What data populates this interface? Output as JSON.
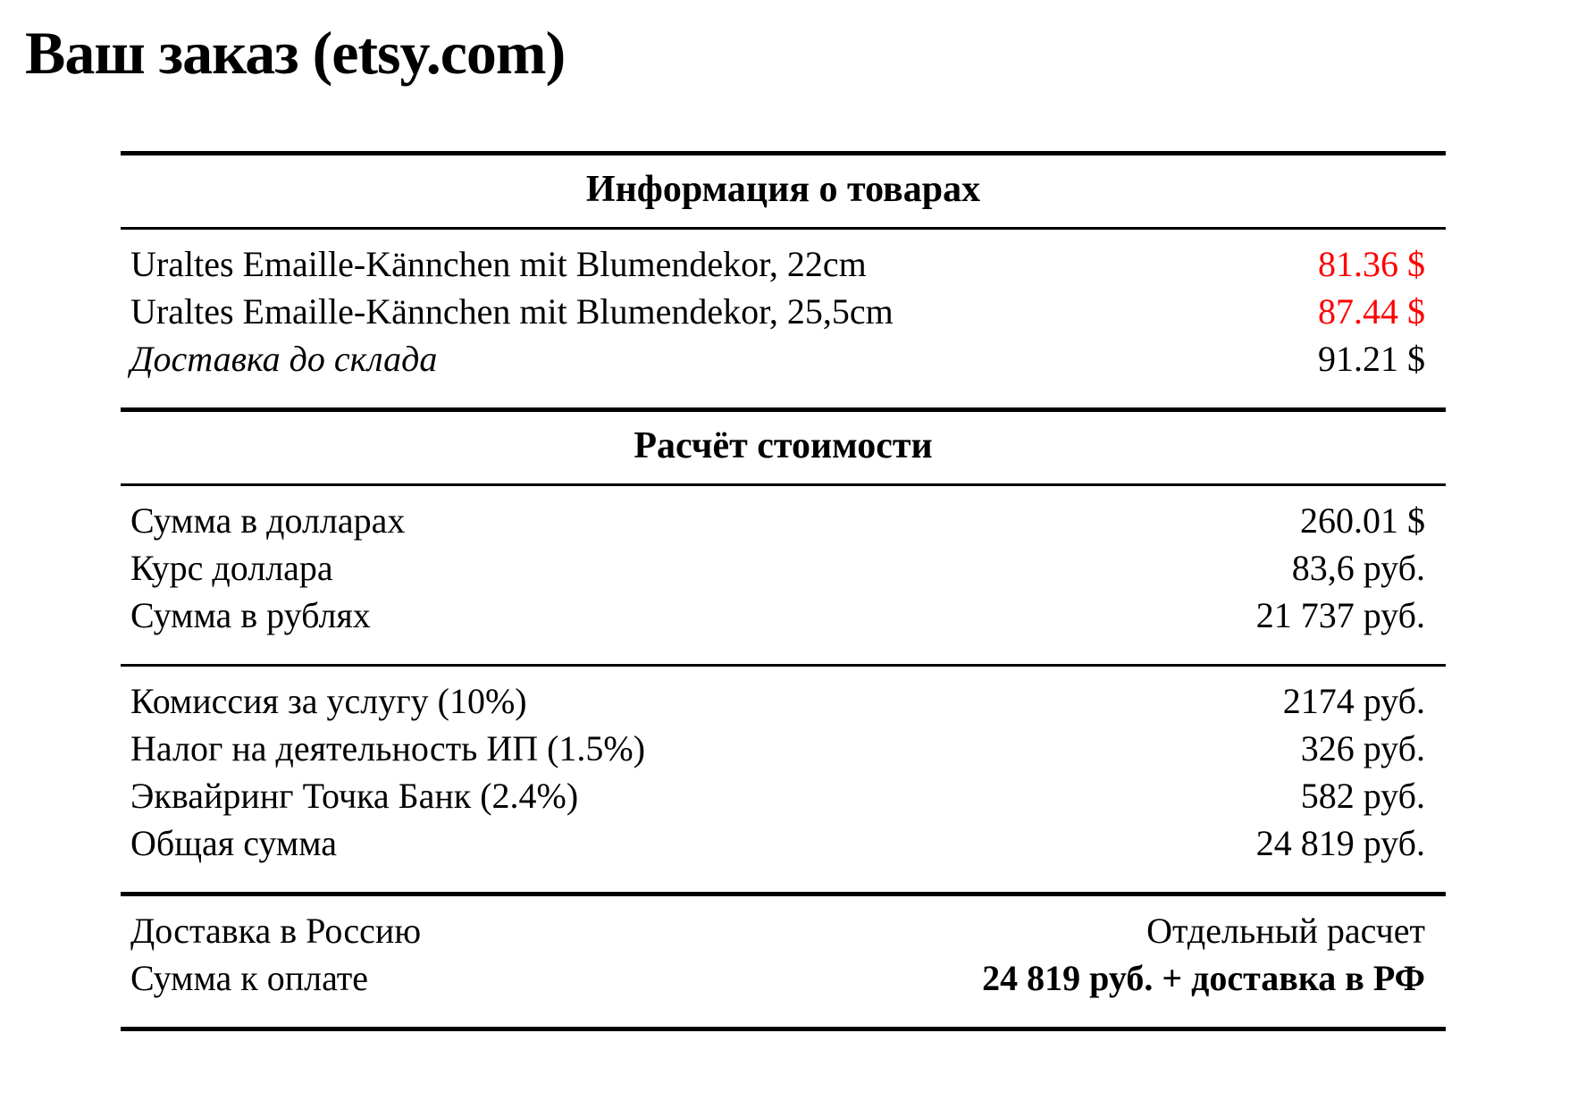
{
  "title": "Ваш заказ (etsy.com)",
  "colors": {
    "red": "#ff0000",
    "text": "#000000",
    "background": "#ffffff"
  },
  "table": {
    "products": {
      "header": "Информация о товарах",
      "rows": [
        {
          "label": "Uraltes Emaille-Kännchen mit Blumendekor, 22cm",
          "value": "81.36 $"
        },
        {
          "label": "Uraltes Emaille-Kännchen mit Blumendekor, 25,5cm",
          "value": "87.44 $"
        },
        {
          "label": "Доставка до склада",
          "value": "91.21 $"
        }
      ]
    },
    "calc": {
      "header": "Расчёт стоимости",
      "totals": [
        {
          "label": "Сумма в долларах",
          "value": "260.01 $"
        },
        {
          "label": "Курс доллара",
          "value": "83,6 руб."
        },
        {
          "label": "Сумма в рублях",
          "value": "21 737 руб."
        }
      ],
      "fees": [
        {
          "label": "Комиссия за услугу (10%)",
          "value": "2174 руб."
        },
        {
          "label": "Налог на деятельность ИП (1.5%)",
          "value": "326 руб."
        },
        {
          "label": "Эквайринг Точка Банк (2.4%)",
          "value": "582 руб."
        },
        {
          "label": "Общая сумма",
          "value": "24 819 руб."
        }
      ],
      "final": [
        {
          "label": "Доставка в Россию",
          "value": "Отдельный расчет"
        },
        {
          "label": "Сумма к оплате",
          "value": "24 819 руб. + доставка в РФ"
        }
      ]
    }
  }
}
